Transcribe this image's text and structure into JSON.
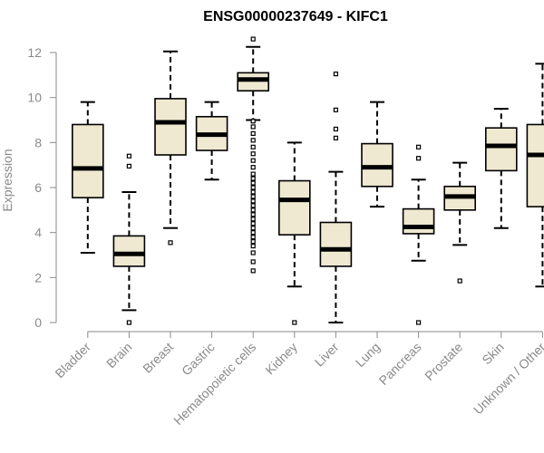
{
  "chart_data": {
    "type": "box",
    "title": "ENSG00000237649 - KIFC1",
    "xlabel": "",
    "ylabel": "Expression",
    "ylim": [
      0,
      12
    ],
    "yticks": [
      0,
      2,
      4,
      6,
      8,
      10,
      12
    ],
    "grid": false,
    "box_fill": "#efe9d2",
    "categories": [
      "Bladder",
      "Brain",
      "Breast",
      "Gastric",
      "Hematopoietic cells",
      "Kidney",
      "Liver",
      "Lung",
      "Pancreas",
      "Prostate",
      "Skin",
      "Unknown / Other"
    ],
    "boxes": [
      {
        "whisker_low": 3.1,
        "q1": 5.55,
        "median": 6.85,
        "q3": 8.8,
        "whisker_high": 9.8,
        "outliers": []
      },
      {
        "whisker_low": 0.55,
        "q1": 2.5,
        "median": 3.05,
        "q3": 3.85,
        "whisker_high": 5.8,
        "outliers": [
          0.0,
          6.95,
          7.4
        ]
      },
      {
        "whisker_low": 4.2,
        "q1": 7.45,
        "median": 8.9,
        "q3": 9.95,
        "whisker_high": 12.05,
        "outliers": [
          3.55
        ]
      },
      {
        "whisker_low": 6.35,
        "q1": 7.65,
        "median": 8.35,
        "q3": 9.15,
        "whisker_high": 9.8,
        "outliers": []
      },
      {
        "whisker_low": 9.0,
        "q1": 10.3,
        "median": 10.8,
        "q3": 11.1,
        "whisker_high": 12.25,
        "outliers": [
          12.6,
          2.3,
          2.7,
          3.1,
          3.4,
          3.6,
          3.8,
          4.0,
          4.2,
          4.4,
          4.6,
          4.8,
          5.0,
          5.2,
          5.4,
          5.6,
          5.8,
          6.0,
          6.2,
          6.4,
          6.6,
          6.9,
          7.2,
          7.5,
          7.8,
          8.1,
          8.4,
          8.7,
          8.95
        ]
      },
      {
        "whisker_low": 1.6,
        "q1": 3.9,
        "median": 5.45,
        "q3": 6.3,
        "whisker_high": 8.0,
        "outliers": [
          0.0
        ]
      },
      {
        "whisker_low": 0.0,
        "q1": 2.5,
        "median": 3.25,
        "q3": 4.45,
        "whisker_high": 6.7,
        "outliers": [
          8.2,
          8.6,
          9.45,
          11.05
        ]
      },
      {
        "whisker_low": 5.15,
        "q1": 6.05,
        "median": 6.9,
        "q3": 7.95,
        "whisker_high": 9.8,
        "outliers": []
      },
      {
        "whisker_low": 2.75,
        "q1": 3.95,
        "median": 4.25,
        "q3": 5.05,
        "whisker_high": 6.35,
        "outliers": [
          0.0,
          7.3,
          7.8
        ]
      },
      {
        "whisker_low": 3.45,
        "q1": 5.0,
        "median": 5.6,
        "q3": 6.05,
        "whisker_high": 7.1,
        "outliers": [
          1.85
        ]
      },
      {
        "whisker_low": 4.2,
        "q1": 6.75,
        "median": 7.85,
        "q3": 8.65,
        "whisker_high": 9.5,
        "outliers": []
      },
      {
        "whisker_low": 1.6,
        "q1": 5.15,
        "median": 7.45,
        "q3": 8.8,
        "whisker_high": 11.5,
        "outliers": []
      }
    ]
  }
}
